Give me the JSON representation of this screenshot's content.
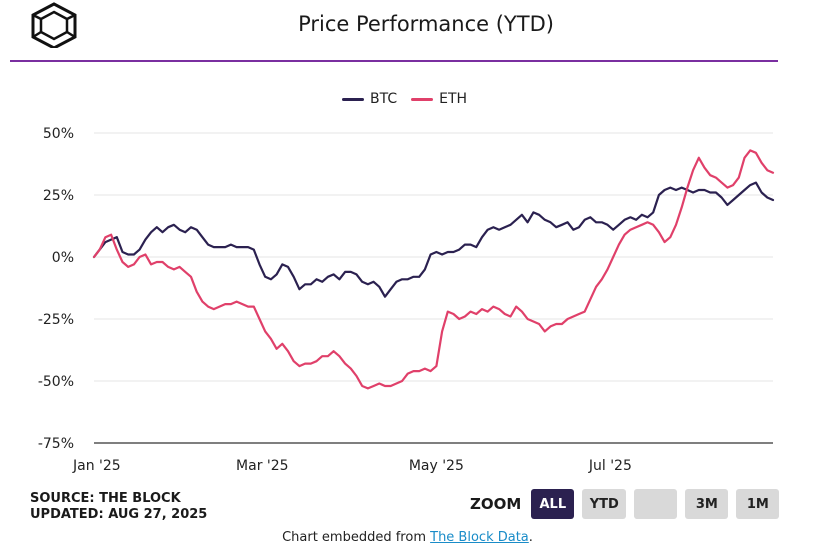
{
  "header": {
    "title": "Price Performance (YTD)",
    "logo": "theblock-cube-logo"
  },
  "chart_data": {
    "type": "line",
    "title": "Price Performance (YTD)",
    "ylabel": "",
    "xlabel": "",
    "ylim": [
      -75,
      50
    ],
    "xlim_days": [
      0,
      238
    ],
    "y_ticks": [
      50,
      25,
      0,
      -25,
      -50,
      -75
    ],
    "y_tick_labels": [
      "50%",
      "25%",
      "0%",
      "-25%",
      "-50%",
      "-75%"
    ],
    "x_tick_days": [
      1,
      59,
      120,
      181
    ],
    "x_tick_labels": [
      "Jan '25",
      "Mar '25",
      "May '25",
      "Jul '25"
    ],
    "legend": "top-center",
    "series": [
      {
        "name": "BTC",
        "color": "#2b2150",
        "x": [
          0,
          2,
          4,
          6,
          8,
          10,
          12,
          14,
          16,
          18,
          20,
          22,
          24,
          26,
          28,
          30,
          32,
          34,
          36,
          38,
          40,
          42,
          44,
          46,
          48,
          50,
          52,
          54,
          56,
          58,
          60,
          62,
          64,
          66,
          68,
          70,
          72,
          74,
          76,
          78,
          80,
          82,
          84,
          86,
          88,
          90,
          92,
          94,
          96,
          98,
          100,
          102,
          104,
          106,
          108,
          110,
          112,
          114,
          116,
          118,
          120,
          122,
          124,
          126,
          128,
          130,
          132,
          134,
          136,
          138,
          140,
          142,
          144,
          146,
          148,
          150,
          152,
          154,
          156,
          158,
          160,
          162,
          164,
          166,
          168,
          170,
          172,
          174,
          176,
          178,
          180,
          182,
          184,
          186,
          188,
          190,
          192,
          194,
          196,
          198,
          200,
          202,
          204,
          206,
          208,
          210,
          212,
          214,
          216,
          218,
          220,
          222,
          224,
          226,
          228,
          230,
          232,
          234,
          236,
          238
        ],
        "values": [
          0,
          3,
          6,
          7,
          8,
          2,
          1,
          1,
          3,
          7,
          10,
          12,
          10,
          12,
          13,
          11,
          10,
          12,
          11,
          8,
          5,
          4,
          4,
          4,
          5,
          4,
          4,
          4,
          3,
          -3,
          -8,
          -9,
          -7,
          -3,
          -4,
          -8,
          -13,
          -11,
          -11,
          -9,
          -10,
          -8,
          -7,
          -9,
          -6,
          -6,
          -7,
          -10,
          -11,
          -10,
          -12,
          -16,
          -13,
          -10,
          -9,
          -9,
          -8,
          -8,
          -5,
          1,
          2,
          1,
          2,
          2,
          3,
          5,
          5,
          4,
          8,
          11,
          12,
          11,
          12,
          13,
          15,
          17,
          14,
          18,
          17,
          15,
          14,
          12,
          13,
          14,
          11,
          12,
          15,
          16,
          14,
          14,
          13,
          11,
          13,
          15,
          16,
          15,
          17,
          16,
          18,
          25,
          27,
          28,
          27,
          28,
          27,
          26,
          27,
          27,
          26,
          26,
          24,
          21,
          23,
          25,
          27,
          29,
          30,
          26,
          24,
          23
        ]
      },
      {
        "name": "ETH",
        "color": "#e0406a",
        "x": [
          0,
          2,
          4,
          6,
          8,
          10,
          12,
          14,
          16,
          18,
          20,
          22,
          24,
          26,
          28,
          30,
          32,
          34,
          36,
          38,
          40,
          42,
          44,
          46,
          48,
          50,
          52,
          54,
          56,
          58,
          60,
          62,
          64,
          66,
          68,
          70,
          72,
          74,
          76,
          78,
          80,
          82,
          84,
          86,
          88,
          90,
          92,
          94,
          96,
          98,
          100,
          102,
          104,
          106,
          108,
          110,
          112,
          114,
          116,
          118,
          120,
          122,
          124,
          126,
          128,
          130,
          132,
          134,
          136,
          138,
          140,
          142,
          144,
          146,
          148,
          150,
          152,
          154,
          156,
          158,
          160,
          162,
          164,
          166,
          168,
          170,
          172,
          174,
          176,
          178,
          180,
          182,
          184,
          186,
          188,
          190,
          192,
          194,
          196,
          198,
          200,
          202,
          204,
          206,
          208,
          210,
          212,
          214,
          216,
          218,
          220,
          222,
          224,
          226,
          228,
          230,
          232,
          234,
          236,
          238
        ],
        "values": [
          0,
          3,
          8,
          9,
          3,
          -2,
          -4,
          -3,
          0,
          1,
          -3,
          -2,
          -2,
          -4,
          -5,
          -4,
          -6,
          -8,
          -14,
          -18,
          -20,
          -21,
          -20,
          -19,
          -19,
          -18,
          -19,
          -20,
          -20,
          -25,
          -30,
          -33,
          -37,
          -35,
          -38,
          -42,
          -44,
          -43,
          -43,
          -42,
          -40,
          -40,
          -38,
          -40,
          -43,
          -45,
          -48,
          -52,
          -53,
          -52,
          -51,
          -52,
          -52,
          -51,
          -50,
          -47,
          -46,
          -46,
          -45,
          -46,
          -44,
          -30,
          -22,
          -23,
          -25,
          -24,
          -22,
          -23,
          -21,
          -22,
          -20,
          -21,
          -23,
          -24,
          -20,
          -22,
          -25,
          -26,
          -27,
          -30,
          -28,
          -27,
          -27,
          -25,
          -24,
          -23,
          -22,
          -17,
          -12,
          -9,
          -5,
          0,
          5,
          9,
          11,
          12,
          13,
          14,
          13,
          10,
          6,
          8,
          13,
          20,
          28,
          35,
          40,
          36,
          33,
          32,
          30,
          28,
          29,
          32,
          40,
          43,
          42,
          38,
          35,
          34
        ]
      }
    ]
  },
  "footer": {
    "source_line": "SOURCE: THE BLOCK",
    "updated_line": "UPDATED: AUG 27, 2025",
    "zoom_label": "ZOOM",
    "zoom_buttons": [
      "ALL",
      "YTD",
      "",
      "3M",
      "1M"
    ],
    "zoom_active": "ALL",
    "embed_prefix": "Chart embedded from ",
    "embed_link": "The Block Data",
    "embed_suffix": "."
  }
}
